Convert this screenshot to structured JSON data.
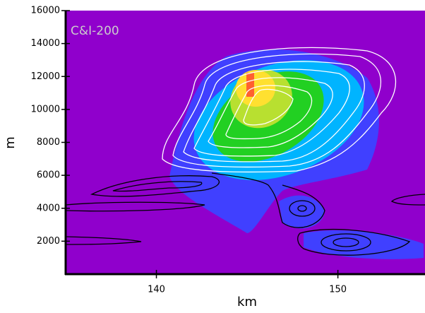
{
  "chart_data": {
    "type": "contour",
    "annotation": "C&I-200",
    "x_label": "km",
    "y_label": "m",
    "xlim": [
      135,
      154.8
    ],
    "xticks": [
      140,
      150
    ],
    "ylim": [
      0,
      16000
    ],
    "yticks": [
      2000,
      4000,
      6000,
      8000,
      10000,
      12000,
      14000,
      16000
    ],
    "background": "#9000cc"
  }
}
